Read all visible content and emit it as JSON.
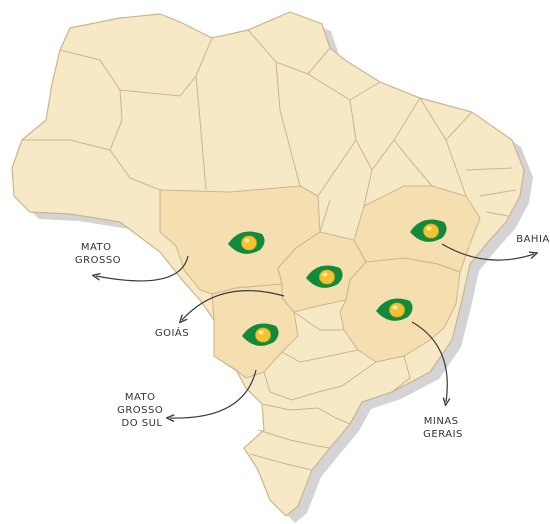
{
  "map": {
    "colors": {
      "land": "#f8e9c6",
      "highlight": "#f5dfb1",
      "border": "#c9b68f",
      "shadow": "#cfcfcf",
      "arrow": "#3a3a3a",
      "marker_green": "#118a3b",
      "marker_yellow": "#f2c230"
    },
    "labels": {
      "mato_grosso": [
        "MATO",
        "GROSSO"
      ],
      "goias": [
        "GOIÁS"
      ],
      "mato_grosso_do_sul": [
        "MATO",
        "GROSSO",
        "DO SUL"
      ],
      "minas_gerais": [
        "MINAS",
        "GERAIS"
      ],
      "bahia": [
        "BAHIA"
      ]
    },
    "markers": [
      {
        "state": "mato_grosso",
        "icon": "green-eye-marker-icon"
      },
      {
        "state": "goias",
        "icon": "green-eye-marker-icon"
      },
      {
        "state": "mato_grosso_do_sul",
        "icon": "green-eye-marker-icon"
      },
      {
        "state": "minas_gerais",
        "icon": "green-eye-marker-icon"
      },
      {
        "state": "bahia",
        "icon": "green-eye-marker-icon"
      }
    ]
  }
}
